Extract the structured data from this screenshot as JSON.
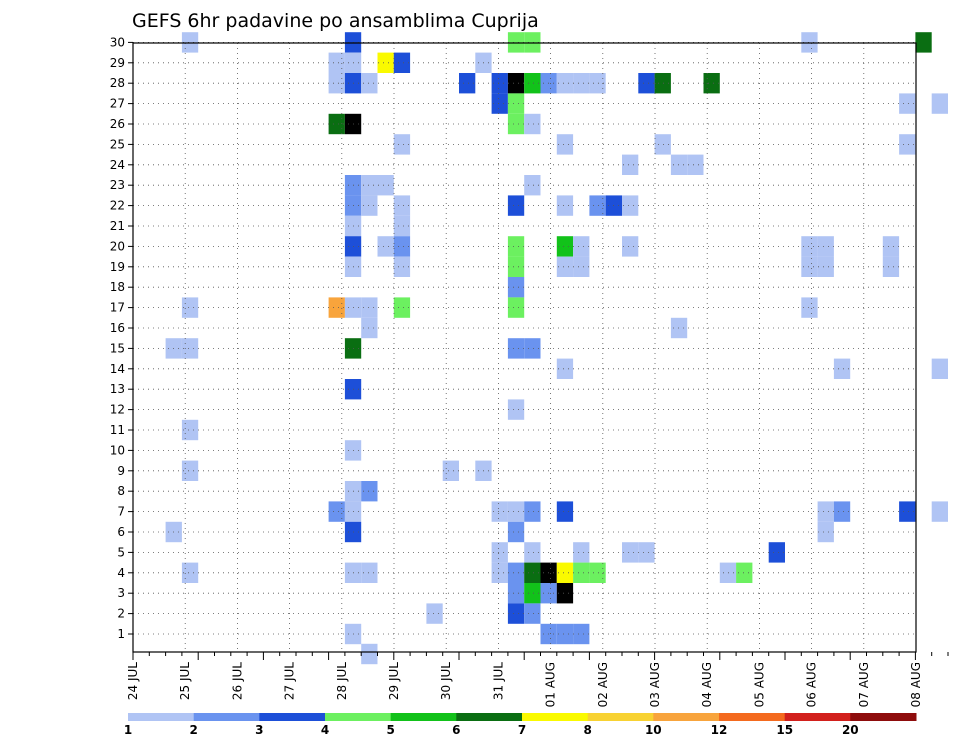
{
  "chart_data": {
    "type": "heatmap",
    "title": "GEFS 6hr padavine po ansamblima Cuprija",
    "x_labels": [
      "24 JUL",
      "25 JUL",
      "26 JUL",
      "27 JUL",
      "28 JUL",
      "29 JUL",
      "30 JUL",
      "31 JUL",
      "01 AUG",
      "02 AUG",
      "03 AUG",
      "04 AUG",
      "05 AUG",
      "06 AUG",
      "07 AUG",
      "08 AUG"
    ],
    "y_labels": [
      "1",
      "2",
      "3",
      "4",
      "5",
      "6",
      "7",
      "8",
      "9",
      "10",
      "11",
      "12",
      "13",
      "14",
      "15",
      "16",
      "17",
      "18",
      "19",
      "20",
      "21",
      "22",
      "23",
      "24",
      "25",
      "26",
      "27",
      "28",
      "29",
      "30"
    ],
    "time_steps_per_day": 4,
    "grid": true,
    "legend_position": "bottom",
    "colorbar": {
      "labels": [
        "1",
        "2",
        "3",
        "4",
        "5",
        "6",
        "7",
        "8",
        "10",
        "12",
        "15",
        "20"
      ],
      "colors": [
        "#b0c4f4",
        "#6a93ef",
        "#1d4fd8",
        "#6cf060",
        "#12c21a",
        "#0a6e12",
        "#fafa00",
        "#f8d232",
        "#f8a43c",
        "#f46a1e",
        "#d2201c",
        "#8e0c0c"
      ]
    },
    "cells": [
      [
        30,
        3,
        1
      ],
      [
        30,
        13,
        3
      ],
      [
        30,
        23,
        4
      ],
      [
        30,
        24,
        4
      ],
      [
        30,
        41,
        1
      ],
      [
        30,
        48,
        6
      ],
      [
        29,
        12,
        1
      ],
      [
        29,
        13,
        1
      ],
      [
        29,
        15,
        7
      ],
      [
        29,
        16,
        3
      ],
      [
        29,
        21,
        1
      ],
      [
        28,
        12,
        1
      ],
      [
        28,
        13,
        3
      ],
      [
        28,
        14,
        1
      ],
      [
        28,
        20,
        3
      ],
      [
        28,
        22,
        3
      ],
      [
        28,
        23,
        14
      ],
      [
        28,
        24,
        5
      ],
      [
        28,
        25,
        2
      ],
      [
        28,
        26,
        1
      ],
      [
        28,
        27,
        1
      ],
      [
        28,
        28,
        1
      ],
      [
        28,
        31,
        3
      ],
      [
        28,
        32,
        6
      ],
      [
        28,
        35,
        6
      ],
      [
        27,
        22,
        3
      ],
      [
        27,
        23,
        4
      ],
      [
        27,
        47,
        1
      ],
      [
        27,
        49,
        1
      ],
      [
        26,
        12,
        6
      ],
      [
        26,
        13,
        16
      ],
      [
        26,
        23,
        4
      ],
      [
        26,
        24,
        1
      ],
      [
        25,
        16,
        1
      ],
      [
        25,
        26,
        1
      ],
      [
        25,
        32,
        1
      ],
      [
        25,
        47,
        1
      ],
      [
        24,
        30,
        1
      ],
      [
        24,
        33,
        1
      ],
      [
        24,
        34,
        1
      ],
      [
        23,
        13,
        2
      ],
      [
        23,
        14,
        1
      ],
      [
        23,
        15,
        1
      ],
      [
        23,
        24,
        1
      ],
      [
        22,
        13,
        2
      ],
      [
        22,
        14,
        1
      ],
      [
        22,
        16,
        1
      ],
      [
        22,
        23,
        3
      ],
      [
        22,
        26,
        1
      ],
      [
        22,
        28,
        2
      ],
      [
        22,
        29,
        3
      ],
      [
        22,
        30,
        1
      ],
      [
        21,
        13,
        1
      ],
      [
        21,
        16,
        1
      ],
      [
        20,
        13,
        3
      ],
      [
        20,
        15,
        1
      ],
      [
        20,
        16,
        2
      ],
      [
        20,
        23,
        4
      ],
      [
        20,
        26,
        5
      ],
      [
        20,
        27,
        1
      ],
      [
        20,
        30,
        1
      ],
      [
        20,
        41,
        1
      ],
      [
        20,
        42,
        1
      ],
      [
        20,
        46,
        1
      ],
      [
        19,
        13,
        1
      ],
      [
        19,
        16,
        1
      ],
      [
        19,
        23,
        4
      ],
      [
        19,
        26,
        1
      ],
      [
        19,
        27,
        1
      ],
      [
        19,
        41,
        1
      ],
      [
        19,
        42,
        1
      ],
      [
        19,
        46,
        1
      ],
      [
        18,
        23,
        2
      ],
      [
        17,
        3,
        1
      ],
      [
        17,
        12,
        9
      ],
      [
        17,
        13,
        1
      ],
      [
        17,
        14,
        1
      ],
      [
        17,
        16,
        4
      ],
      [
        17,
        23,
        4
      ],
      [
        17,
        41,
        1
      ],
      [
        16,
        14,
        1
      ],
      [
        16,
        33,
        1
      ],
      [
        15,
        2,
        1
      ],
      [
        15,
        3,
        1
      ],
      [
        15,
        13,
        6
      ],
      [
        15,
        23,
        2
      ],
      [
        15,
        24,
        2
      ],
      [
        14,
        26,
        1
      ],
      [
        14,
        43,
        1
      ],
      [
        14,
        49,
        1
      ],
      [
        13,
        13,
        3
      ],
      [
        12,
        23,
        1
      ],
      [
        11,
        3,
        1
      ],
      [
        10,
        13,
        1
      ],
      [
        9,
        3,
        1
      ],
      [
        9,
        19,
        1
      ],
      [
        9,
        21,
        1
      ],
      [
        8,
        13,
        1
      ],
      [
        8,
        14,
        2
      ],
      [
        7,
        12,
        2
      ],
      [
        7,
        13,
        1
      ],
      [
        7,
        22,
        1
      ],
      [
        7,
        23,
        1
      ],
      [
        7,
        24,
        2
      ],
      [
        7,
        26,
        3
      ],
      [
        7,
        42,
        1
      ],
      [
        7,
        43,
        2
      ],
      [
        7,
        47,
        3
      ],
      [
        7,
        49,
        1
      ],
      [
        6,
        2,
        1
      ],
      [
        6,
        13,
        3
      ],
      [
        6,
        23,
        2
      ],
      [
        6,
        42,
        1
      ],
      [
        5,
        22,
        1
      ],
      [
        5,
        24,
        1
      ],
      [
        5,
        27,
        1
      ],
      [
        5,
        30,
        1
      ],
      [
        5,
        31,
        1
      ],
      [
        5,
        39,
        3
      ],
      [
        4,
        3,
        1
      ],
      [
        4,
        13,
        1
      ],
      [
        4,
        14,
        1
      ],
      [
        4,
        22,
        1
      ],
      [
        4,
        23,
        2
      ],
      [
        4,
        24,
        6
      ],
      [
        4,
        25,
        16
      ],
      [
        4,
        26,
        7
      ],
      [
        4,
        27,
        4
      ],
      [
        4,
        28,
        4
      ],
      [
        4,
        36,
        1
      ],
      [
        4,
        37,
        4
      ],
      [
        3,
        23,
        2
      ],
      [
        3,
        24,
        5
      ],
      [
        3,
        25,
        2
      ],
      [
        3,
        26,
        15
      ],
      [
        2,
        18,
        1
      ],
      [
        2,
        23,
        3
      ],
      [
        2,
        24,
        2
      ],
      [
        1,
        13,
        1
      ],
      [
        1,
        25,
        2
      ],
      [
        1,
        26,
        2
      ],
      [
        1,
        27,
        2
      ],
      [
        0,
        14,
        1
      ]
    ]
  }
}
